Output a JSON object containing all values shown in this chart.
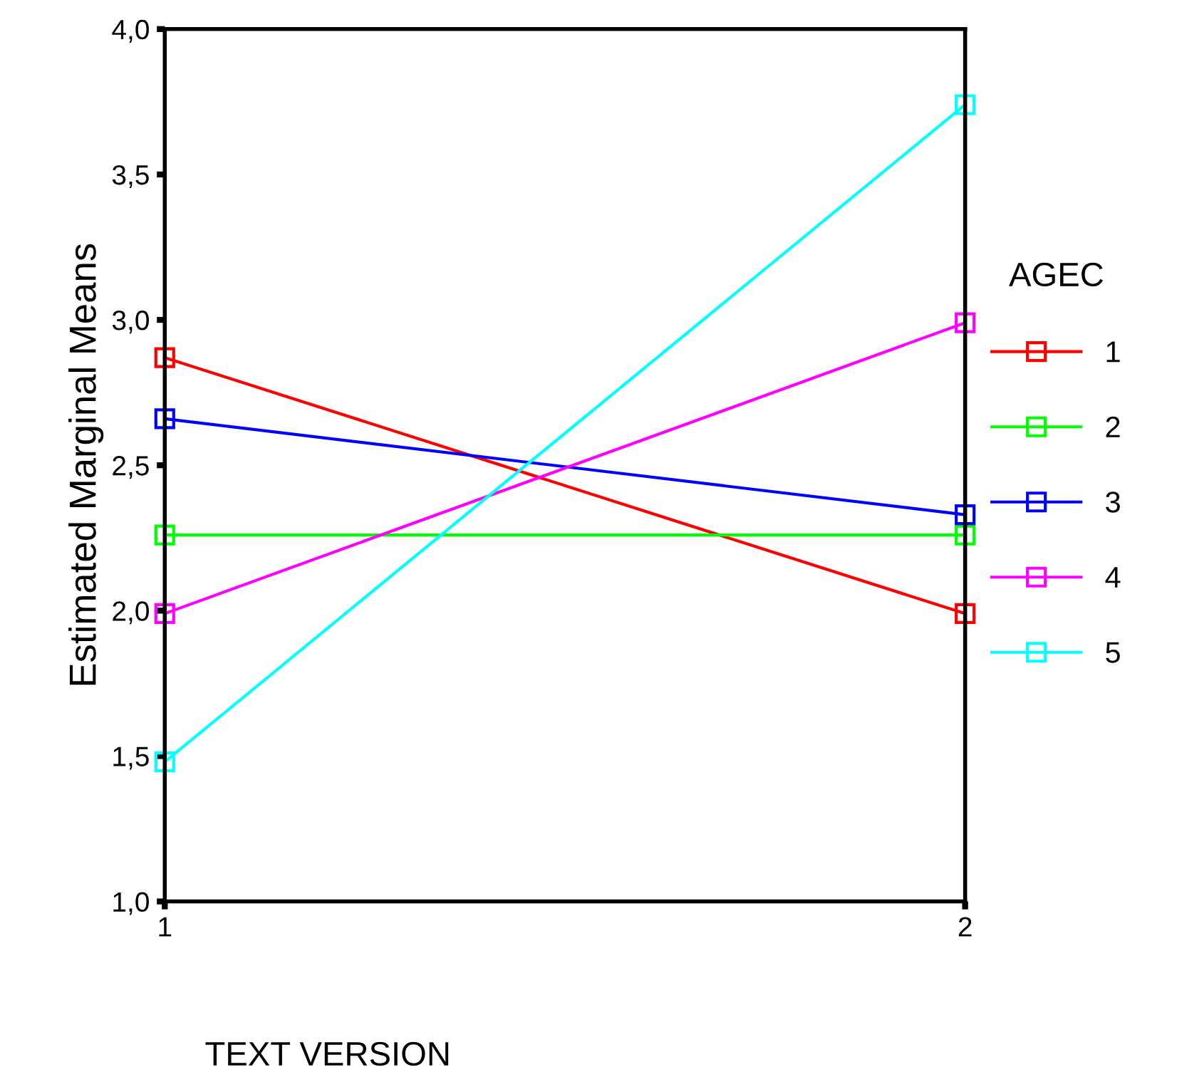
{
  "chart_data": {
    "type": "line",
    "xlabel": "TEXT VERSION",
    "ylabel": "Estimated Marginal Means",
    "legend_title": "AGEC",
    "x": [
      1,
      2
    ],
    "xlim": [
      1,
      2
    ],
    "xticks": [
      1,
      2
    ],
    "ylim": [
      1,
      4
    ],
    "yticks": [
      {
        "value": 1,
        "label": "1,0"
      },
      {
        "value": 1.5,
        "label": "1,5"
      },
      {
        "value": 2,
        "label": "2,0"
      },
      {
        "value": 2.5,
        "label": "2,5"
      },
      {
        "value": 3,
        "label": "3,0"
      },
      {
        "value": 3.5,
        "label": "3,5"
      },
      {
        "value": 4,
        "label": "4,0"
      }
    ],
    "series": [
      {
        "name": "1",
        "color": "#ff0000",
        "values": [
          2.87,
          1.99
        ]
      },
      {
        "name": "2",
        "color": "#00ff00",
        "values": [
          2.26,
          2.26
        ]
      },
      {
        "name": "3",
        "color": "#0000ff",
        "values": [
          2.66,
          2.33
        ]
      },
      {
        "name": "4",
        "color": "#ff00ff",
        "values": [
          1.99,
          2.99
        ]
      },
      {
        "name": "5",
        "color": "#00ffff",
        "values": [
          1.48,
          3.74
        ]
      }
    ],
    "marker": "square",
    "legend": "right",
    "grid": false
  }
}
